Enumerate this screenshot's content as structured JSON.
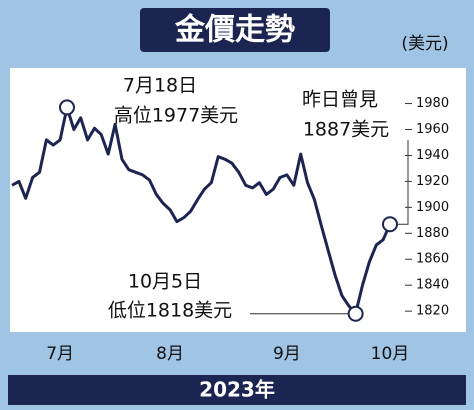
{
  "chart_data": {
    "type": "line",
    "title": "金價走勢",
    "unit": "(美元)",
    "xlabel": "2023年",
    "categories": [
      null,
      null,
      null,
      null,
      null,
      null,
      null,
      "7月",
      null,
      null,
      null,
      null,
      null,
      null,
      null,
      null,
      null,
      null,
      null,
      null,
      null,
      null,
      null,
      "8月",
      null,
      null,
      null,
      null,
      null,
      null,
      null,
      null,
      null,
      null,
      null,
      null,
      null,
      null,
      null,
      null,
      "9月",
      null,
      null,
      null,
      null,
      null,
      null,
      null,
      null,
      null,
      null,
      null,
      null,
      null,
      null,
      "10月"
    ],
    "series": [
      {
        "name": "金價",
        "color": "#1c2552",
        "values": [
          1917,
          1920,
          1907,
          1923,
          1927,
          1952,
          1948,
          1952,
          1977,
          1960,
          1969,
          1952,
          1961,
          1956,
          1941,
          1964,
          1937,
          1929,
          1927,
          1925,
          1921,
          1910,
          1903,
          1898,
          1889,
          1892,
          1897,
          1906,
          1914,
          1919,
          1939,
          1937,
          1934,
          1927,
          1917,
          1915,
          1919,
          1910,
          1914,
          1923,
          1925,
          1917,
          1941,
          1919,
          1906,
          1886,
          1867,
          1848,
          1832,
          1824,
          1818,
          1840,
          1858,
          1871,
          1875,
          1887
        ]
      }
    ],
    "ylim": [
      1807,
      2002
    ],
    "yticks": [
      1820,
      1840,
      1860,
      1880,
      1900,
      1920,
      1940,
      1960,
      1980
    ],
    "annotations": [
      [
        "7月18日",
        "高位1977美元"
      ],
      [
        "昨日曾見",
        "1887美元"
      ],
      [
        "10月5日",
        "低位1818美元"
      ]
    ]
  }
}
